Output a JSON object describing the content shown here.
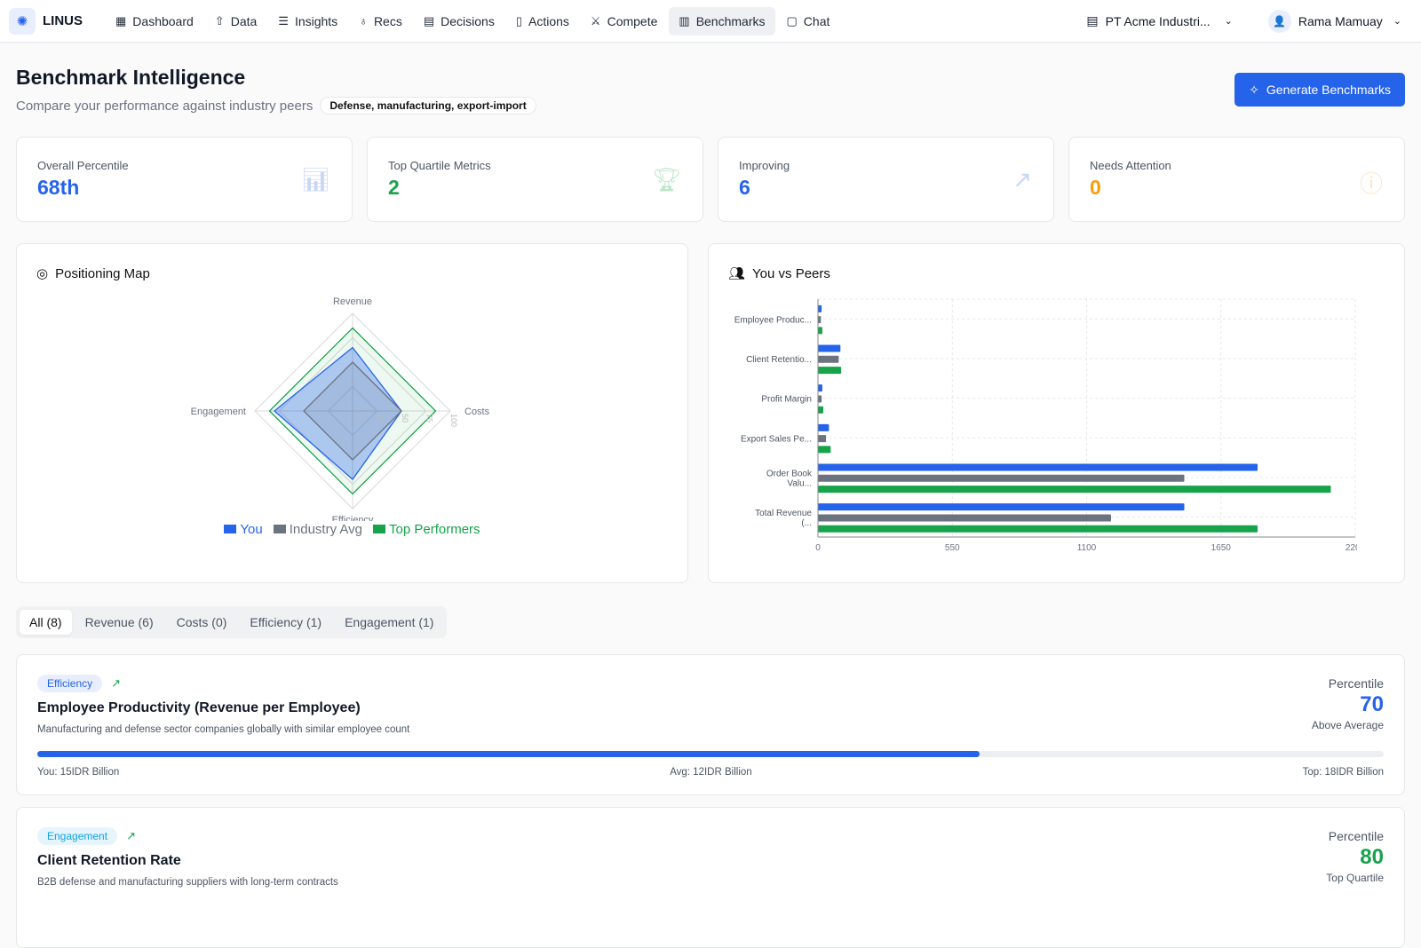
{
  "app": {
    "name": "LINUS"
  },
  "nav": [
    {
      "label": "Dashboard",
      "icon": "dashboard-icon"
    },
    {
      "label": "Data",
      "icon": "upload-icon"
    },
    {
      "label": "Insights",
      "icon": "database-icon"
    },
    {
      "label": "Recs",
      "icon": "lightbulb-icon"
    },
    {
      "label": "Decisions",
      "icon": "building-icon"
    },
    {
      "label": "Actions",
      "icon": "clipboard-icon"
    },
    {
      "label": "Compete",
      "icon": "swords-icon"
    },
    {
      "label": "Benchmarks",
      "icon": "bar-chart-icon",
      "active": true
    },
    {
      "label": "Chat",
      "icon": "message-icon"
    }
  ],
  "company": "PT Acme Industri...",
  "user": "Rama Mamuay",
  "page": {
    "title": "Benchmark Intelligence",
    "subtitle": "Compare your performance against industry peers",
    "industry": "Defense, manufacturing, export-import",
    "generate": "Generate Benchmarks"
  },
  "stats": [
    {
      "label": "Overall Percentile",
      "value": "68th",
      "color": "#2563eb"
    },
    {
      "label": "Top Quartile Metrics",
      "value": "2",
      "color": "#16a34a"
    },
    {
      "label": "Improving",
      "value": "6",
      "color": "#2563eb"
    },
    {
      "label": "Needs Attention",
      "value": "0",
      "color": "#f59e0b"
    }
  ],
  "positioning": {
    "title": "Positioning Map"
  },
  "peers": {
    "title": "You vs Peers"
  },
  "colors": {
    "you": "#2563eb",
    "avg": "#6b7280",
    "top": "#16a34a"
  },
  "chart_data": [
    {
      "type": "radar",
      "title": "Positioning Map",
      "axes": [
        "Revenue",
        "Costs",
        "Efficiency",
        "Engagement"
      ],
      "ticks": [
        "0",
        "25",
        "50",
        "75",
        "100"
      ],
      "range": [
        0,
        100
      ],
      "series": [
        {
          "name": "You",
          "values": [
            65,
            50,
            70,
            80
          ]
        },
        {
          "name": "Industry Avg",
          "values": [
            50,
            50,
            50,
            50
          ]
        },
        {
          "name": "Top Performers",
          "values": [
            85,
            85,
            85,
            85
          ]
        }
      ],
      "legend": "bottom"
    },
    {
      "type": "bar",
      "orientation": "horizontal",
      "title": "You vs Peers",
      "categories": [
        "Employee Produc...",
        "Client Retentio...",
        "Profit Margin",
        "Export Sales Pe...",
        "Order Book Valu...",
        "Total Revenue (..."
      ],
      "series": [
        {
          "name": "You",
          "values": [
            15,
            92,
            18,
            45,
            1800,
            1500
          ]
        },
        {
          "name": "Industry Avg",
          "values": [
            12,
            85,
            15,
            33,
            1500,
            1200
          ]
        },
        {
          "name": "Top Performers",
          "values": [
            18,
            95,
            22,
            52,
            2100,
            1800
          ]
        }
      ],
      "xticks": [
        "0",
        "550",
        "1100",
        "1650",
        "2200"
      ],
      "xlim": [
        0,
        2200
      ],
      "grid": true
    }
  ],
  "tabs": [
    {
      "label": "All (8)",
      "active": true
    },
    {
      "label": "Revenue (6)"
    },
    {
      "label": "Costs (0)"
    },
    {
      "label": "Efficiency (1)"
    },
    {
      "label": "Engagement (1)"
    }
  ],
  "metrics": [
    {
      "category": "Efficiency",
      "title": "Employee Productivity (Revenue per Employee)",
      "desc": "Manufacturing and defense sector companies globally with similar employee count",
      "percentile_label": "Percentile",
      "percentile": "70",
      "percentile_value": 70,
      "status": "Above Average",
      "you": "You: 15IDR Billion",
      "avg": "Avg: 12IDR Billion",
      "top": "Top: 18IDR Billion",
      "color": "#2563eb"
    },
    {
      "category": "Engagement",
      "title": "Client Retention Rate",
      "desc": "B2B defense and manufacturing suppliers with long-term contracts",
      "percentile_label": "Percentile",
      "percentile": "80",
      "percentile_value": 80,
      "status": "Top Quartile",
      "color": "#16a34a"
    }
  ]
}
